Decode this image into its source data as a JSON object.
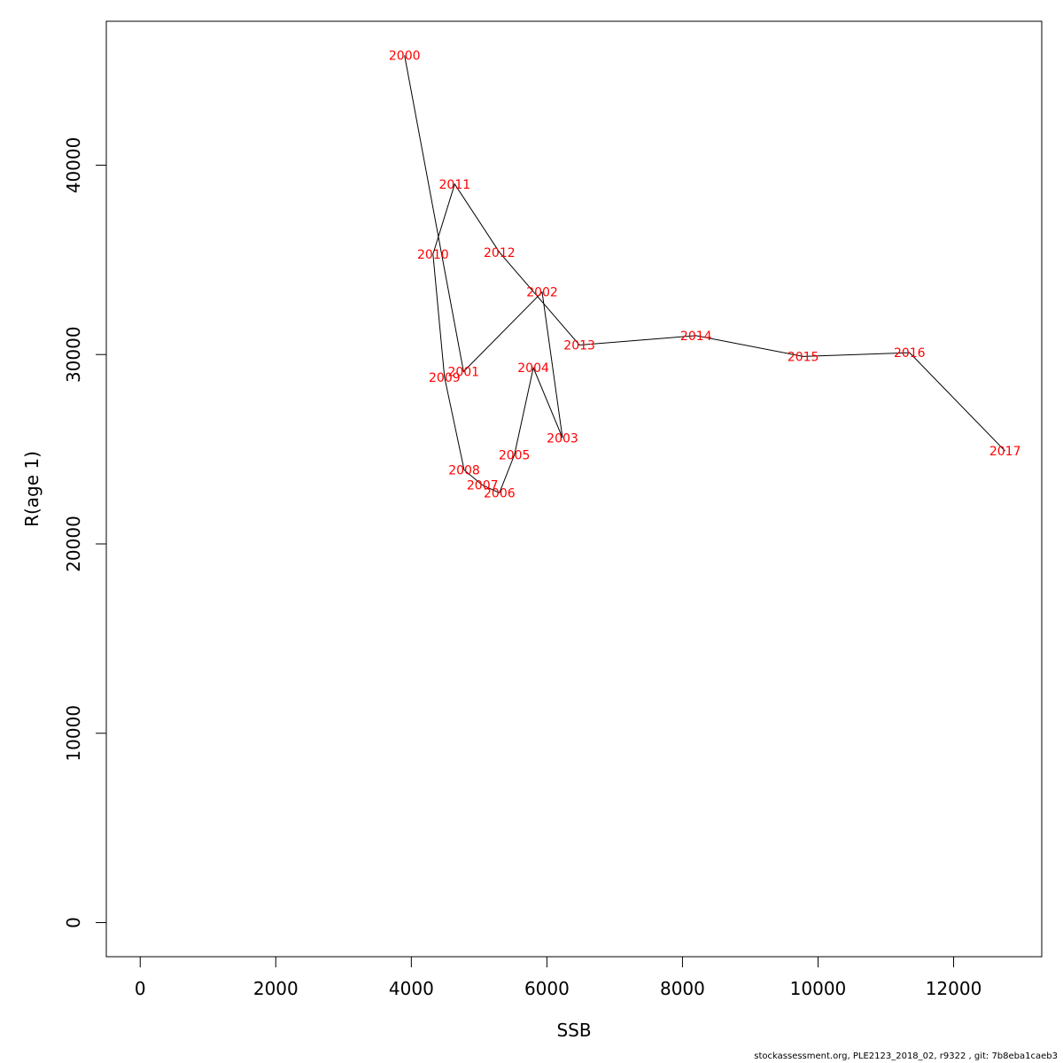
{
  "chart_data": {
    "type": "line",
    "xlabel": "SSB",
    "ylabel": "R(age 1)",
    "xlim": [
      -500,
      13300
    ],
    "ylim": [
      -1800,
      47600
    ],
    "x_ticks": [
      0,
      2000,
      4000,
      6000,
      8000,
      10000,
      12000
    ],
    "y_ticks": [
      0,
      10000,
      20000,
      30000,
      40000
    ],
    "grid": false,
    "line_color": "#000000",
    "label_color": "#ff0000",
    "points": [
      {
        "year": "2000",
        "ssb": 3900,
        "r": 45800
      },
      {
        "year": "2001",
        "ssb": 4770,
        "r": 29100
      },
      {
        "year": "2002",
        "ssb": 5930,
        "r": 33300
      },
      {
        "year": "2003",
        "ssb": 6230,
        "r": 25600
      },
      {
        "year": "2004",
        "ssb": 5800,
        "r": 29300
      },
      {
        "year": "2005",
        "ssb": 5520,
        "r": 24700
      },
      {
        "year": "2006",
        "ssb": 5300,
        "r": 22700
      },
      {
        "year": "2007",
        "ssb": 5050,
        "r": 23100
      },
      {
        "year": "2008",
        "ssb": 4780,
        "r": 23900
      },
      {
        "year": "2009",
        "ssb": 4490,
        "r": 28800
      },
      {
        "year": "2010",
        "ssb": 4320,
        "r": 35300
      },
      {
        "year": "2011",
        "ssb": 4640,
        "r": 39000
      },
      {
        "year": "2012",
        "ssb": 5300,
        "r": 35400
      },
      {
        "year": "2013",
        "ssb": 6480,
        "r": 30500
      },
      {
        "year": "2014",
        "ssb": 8200,
        "r": 31000
      },
      {
        "year": "2015",
        "ssb": 9780,
        "r": 29900
      },
      {
        "year": "2016",
        "ssb": 11350,
        "r": 30100
      },
      {
        "year": "2017",
        "ssb": 12760,
        "r": 24900
      }
    ]
  },
  "footer": "stockassessment.org, PLE2123_2018_02, r9322 , git: 7b8eba1caeb3"
}
